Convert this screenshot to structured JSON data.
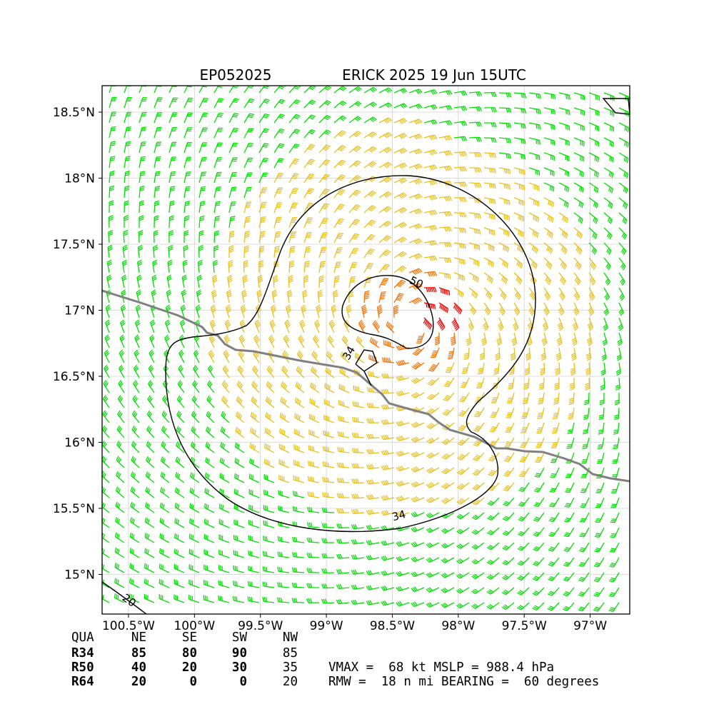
{
  "chart_data": {
    "type": "wind_barb_map",
    "title_left": "EP052025",
    "title_right": "ERICK 2025 19 Jun 15UTC",
    "lon_range": [
      -100.7,
      -96.7
    ],
    "lat_range": [
      14.7,
      18.7
    ],
    "x_tick_labels": [
      "100.5°W",
      "100°W",
      "99.5°W",
      "99°W",
      "98.5°W",
      "98°W",
      "97.5°W",
      "97°W"
    ],
    "y_tick_labels": [
      "15°N",
      "15.5°N",
      "16°N",
      "16.5°N",
      "17°N",
      "17.5°N",
      "18°N",
      "18.5°N"
    ],
    "contour_labels": [
      "34",
      "34",
      "50",
      "20"
    ],
    "storm_center": {
      "lon": -98.35,
      "lat": 16.9
    },
    "barb_colors": {
      "below34": "#00e000",
      "r34": "#e8c020",
      "r50": "#ff7000",
      "r64": "#ff0000"
    },
    "grid": true
  },
  "table": {
    "header": [
      "QUA",
      "NE",
      "SE",
      "SW",
      "NW"
    ],
    "rows": [
      {
        "label": "R34",
        "values": [
          "85",
          "80",
          "90",
          "85"
        ]
      },
      {
        "label": "R50",
        "values": [
          "40",
          "20",
          "30",
          "35"
        ]
      },
      {
        "label": "R64",
        "values": [
          "20",
          "0",
          "0",
          "20"
        ]
      }
    ],
    "line1": "VMAX =  68 kt MSLP = 988.4 hPa",
    "line2": "RMW =  18 n mi BEARING =  60 degrees"
  }
}
